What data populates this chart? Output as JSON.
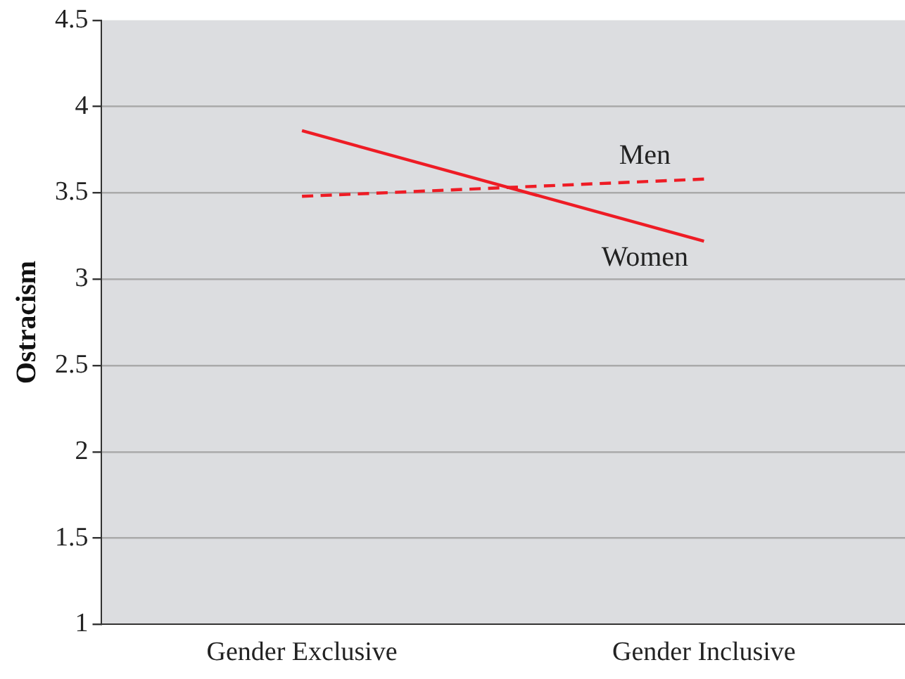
{
  "chart_data": {
    "type": "line",
    "ylabel": "Ostracism",
    "categories": [
      "Gender Exclusive",
      "Gender Inclusive"
    ],
    "series": [
      {
        "name": "Men",
        "color": "#ee1c25",
        "values": [
          3.48,
          3.58
        ],
        "line_style": "dashed"
      },
      {
        "name": "Women",
        "color": "#ee1c25",
        "values": [
          3.86,
          3.22
        ],
        "line_style": "solid"
      }
    ],
    "ylim": [
      1,
      4.5
    ],
    "yticks": [
      1,
      1.5,
      2,
      2.5,
      3,
      3.5,
      4,
      4.5
    ],
    "grid": "y",
    "legend": false,
    "marker": "none"
  }
}
